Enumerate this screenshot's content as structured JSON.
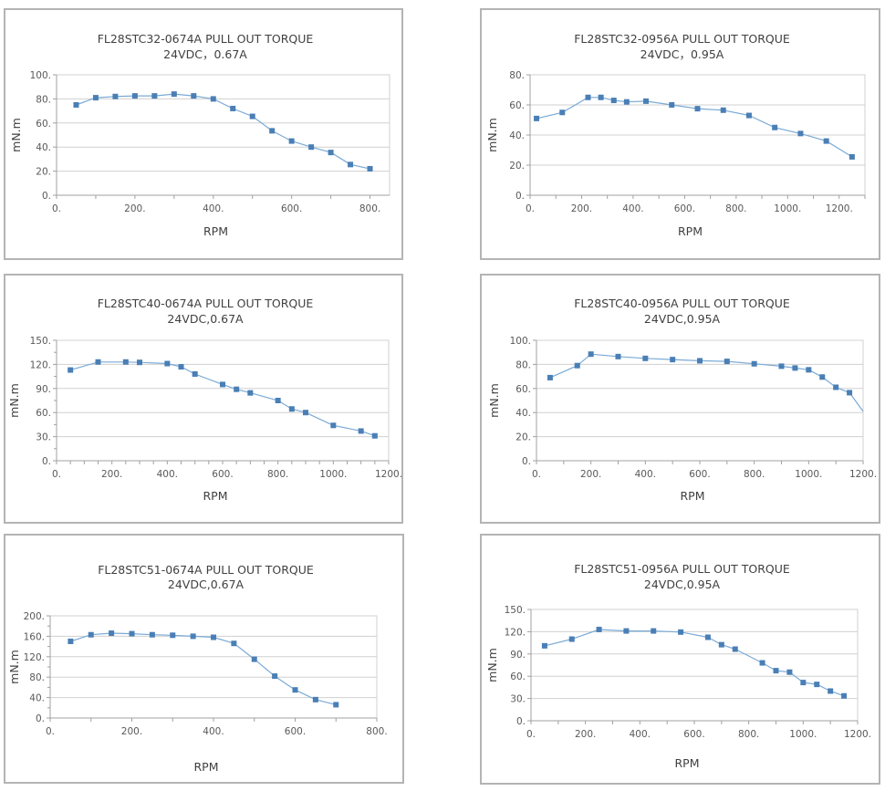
{
  "chart_data": [
    {
      "type": "line",
      "title": "FL28STC32-0674A  PULL OUT TORQUE",
      "subtitle": "24VDC，0.67A",
      "xlabel": "RPM",
      "ylabel": "mN.m",
      "xlim": [
        0,
        850
      ],
      "ylim": [
        0,
        100
      ],
      "xticks": [
        0,
        200,
        400,
        600,
        800
      ],
      "xtick_labels": [
        "0.",
        "200.",
        "400.",
        "600.",
        "800."
      ],
      "xminor_step": 100,
      "yticks": [
        0,
        20,
        40,
        60,
        80,
        100
      ],
      "ytick_labels": [
        "0.",
        "20.",
        "40.",
        "60.",
        "80.",
        "100."
      ],
      "yminor_step": null,
      "grid": true,
      "series": [
        {
          "name": "Pull out torque",
          "x": [
            50,
            100,
            150,
            200,
            250,
            300,
            350,
            400,
            450,
            500,
            550,
            600,
            650,
            700,
            750,
            800
          ],
          "y": [
            75,
            81,
            82,
            82.5,
            82.5,
            84,
            82.5,
            80,
            72,
            65.5,
            53.5,
            45,
            40,
            35.5,
            25.5,
            22
          ]
        }
      ]
    },
    {
      "type": "line",
      "title": "FL28STC32-0956A  PULL OUT TORQUE",
      "subtitle": "24VDC，0.95A",
      "xlabel": "RPM",
      "ylabel": "mN.m",
      "xlim": [
        0,
        1300
      ],
      "ylim": [
        0,
        80
      ],
      "xticks": [
        0,
        200,
        400,
        600,
        800,
        1000,
        1200
      ],
      "xtick_labels": [
        "0.",
        "200.",
        "400.",
        "600.",
        "800.",
        "1000.",
        "1200."
      ],
      "xminor_step": 100,
      "yticks": [
        0,
        20,
        40,
        60,
        80
      ],
      "ytick_labels": [
        "0.",
        "20.",
        "40.",
        "60.",
        "80."
      ],
      "yminor_step": null,
      "grid": true,
      "series": [
        {
          "name": "Pull out torque",
          "x": [
            25,
            125,
            225,
            275,
            325,
            375,
            450,
            550,
            650,
            750,
            850,
            950,
            1050,
            1150,
            1250
          ],
          "y": [
            51,
            55,
            65,
            65,
            63,
            62,
            62.5,
            60,
            57.5,
            56.5,
            53,
            45,
            41,
            36,
            25.5
          ]
        }
      ]
    },
    {
      "type": "line",
      "title": "FL28STC40-0674A PULL OUT TORQUE",
      "subtitle": "24VDC,0.67A",
      "xlabel": "RPM",
      "ylabel": "mN.m",
      "xlim": [
        0,
        1200
      ],
      "ylim": [
        0,
        150
      ],
      "xticks": [
        0,
        200,
        400,
        600,
        800,
        1000,
        1200
      ],
      "xtick_labels": [
        "0.",
        "200.",
        "400.",
        "600.",
        "800.",
        "1000.",
        "1200."
      ],
      "xminor_step": 50,
      "yticks": [
        0,
        30,
        60,
        90,
        120,
        150
      ],
      "ytick_labels": [
        "0.",
        "30.",
        "60.",
        "90.",
        "120.",
        "150."
      ],
      "yminor_step": 15,
      "grid": true,
      "series": [
        {
          "name": "Pull out torque",
          "x": [
            50,
            150,
            250,
            300,
            400,
            450,
            500,
            600,
            650,
            700,
            800,
            850,
            900,
            1000,
            1100,
            1150
          ],
          "y": [
            113,
            123,
            123,
            122.5,
            121,
            117,
            108,
            95,
            89,
            84.5,
            75,
            64.5,
            60,
            44,
            37,
            31
          ]
        }
      ]
    },
    {
      "type": "line",
      "title": "FL28STC40-0956A PULL OUT TORQUE",
      "subtitle": "24VDC,0.95A",
      "xlabel": "RPM",
      "ylabel": "mN.m",
      "xlim": [
        0,
        1200
      ],
      "ylim": [
        0,
        100
      ],
      "xticks": [
        0,
        200,
        400,
        600,
        800,
        1000,
        1200
      ],
      "xtick_labels": [
        "0.",
        "200.",
        "400.",
        "600.",
        "800.",
        "1000.",
        "1200."
      ],
      "xminor_step": 100,
      "yticks": [
        0,
        20,
        40,
        60,
        80,
        100
      ],
      "ytick_labels": [
        "0.",
        "20.",
        "40.",
        "60.",
        "80.",
        "100."
      ],
      "yminor_step": null,
      "grid": true,
      "series": [
        {
          "name": "Pull out torque",
          "x": [
            50,
            150,
            200,
            300,
            400,
            500,
            600,
            700,
            800,
            900,
            950,
            1000,
            1050,
            1100,
            1150,
            1200
          ],
          "y": [
            69,
            79,
            88.5,
            86.5,
            85,
            84,
            83,
            82.5,
            80.5,
            78.5,
            77,
            75.5,
            69.5,
            61,
            56.5,
            41
          ],
          "markers_hidden_at": [
            1200
          ]
        }
      ]
    },
    {
      "type": "line",
      "title": "FL28STC51-0674A PULL OUT TORQUE",
      "subtitle": "24VDC,0.67A",
      "xlabel": "RPM",
      "ylabel": "mN.m",
      "xlim": [
        0,
        800
      ],
      "ylim": [
        0,
        200
      ],
      "xticks": [
        0,
        200,
        400,
        600,
        800
      ],
      "xtick_labels": [
        "0.",
        "200.",
        "400.",
        "600.",
        "800."
      ],
      "xminor_step": 100,
      "yticks": [
        0,
        40,
        80,
        120,
        160,
        200
      ],
      "ytick_labels": [
        "0.",
        "40.",
        "80.",
        "120.",
        "160.",
        "200."
      ],
      "yminor_step": 20,
      "grid": true,
      "series": [
        {
          "name": "Pull out torque",
          "x": [
            50,
            100,
            150,
            200,
            250,
            300,
            350,
            400,
            450,
            500,
            550,
            600,
            650,
            700
          ],
          "y": [
            150,
            163,
            166,
            165,
            163,
            162,
            160,
            158,
            146,
            115,
            82,
            55,
            36,
            26
          ]
        }
      ]
    },
    {
      "type": "line",
      "title": "FL28STC51-0956A PULL OUT TORQUE",
      "subtitle": "24VDC,0.95A",
      "xlabel": "RPM",
      "ylabel": "mN.m",
      "xlim": [
        0,
        1200
      ],
      "ylim": [
        0,
        150
      ],
      "xticks": [
        0,
        200,
        400,
        600,
        800,
        1000,
        1200
      ],
      "xtick_labels": [
        "0.",
        "200.",
        "400.",
        "600.",
        "800.",
        "1000.",
        "1200."
      ],
      "xminor_step": 100,
      "yticks": [
        0,
        30,
        60,
        90,
        120,
        150
      ],
      "ytick_labels": [
        "0.",
        "30.",
        "60.",
        "90.",
        "120.",
        "150."
      ],
      "yminor_step": null,
      "grid": true,
      "series": [
        {
          "name": "Pull out torque",
          "x": [
            50,
            150,
            250,
            350,
            450,
            550,
            650,
            700,
            750,
            850,
            900,
            950,
            1000,
            1050,
            1100,
            1150
          ],
          "y": [
            101,
            110,
            123,
            121,
            121,
            119.5,
            112.5,
            102.5,
            96.5,
            78,
            67.5,
            65.5,
            51.5,
            49,
            40,
            33.5
          ]
        }
      ]
    }
  ],
  "colors": {
    "line": "#7aaad6",
    "marker": "#4a7fb5",
    "grid": "#d0d0d0",
    "panel_border": "#b4b4b4"
  }
}
